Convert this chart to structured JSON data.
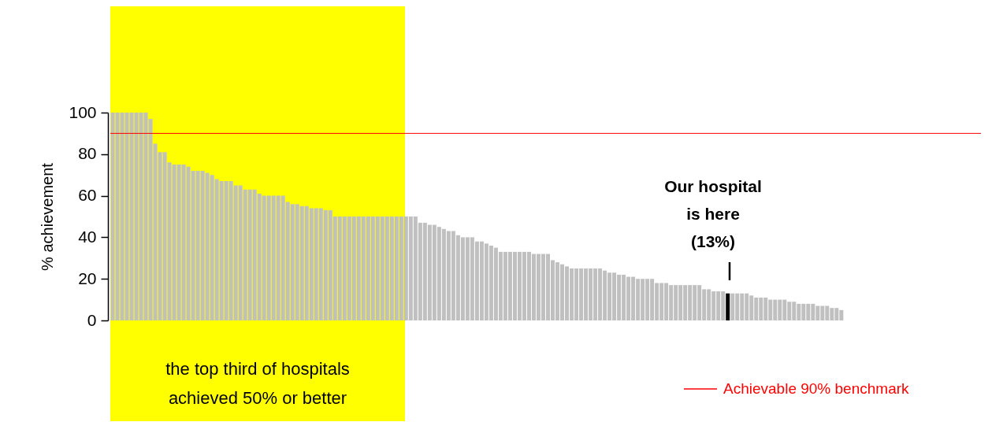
{
  "chart_data": {
    "type": "bar",
    "ylabel": "% achievement",
    "categories": [
      null,
      null,
      null,
      null,
      null,
      null,
      null,
      null,
      null,
      null,
      null,
      null,
      null,
      null,
      null,
      null,
      null,
      null,
      null,
      null,
      null,
      null,
      null,
      null,
      null,
      null,
      null,
      null,
      null,
      null,
      null,
      null,
      null,
      null,
      null,
      null,
      null,
      null,
      null,
      null,
      null,
      null,
      null,
      null,
      null,
      null,
      null,
      null,
      null,
      null,
      null,
      null,
      null,
      null,
      null,
      null,
      null,
      null,
      null,
      null,
      null,
      null,
      null,
      null,
      null,
      null,
      null,
      null,
      null,
      null,
      null,
      null,
      null,
      null,
      null,
      null,
      null,
      null,
      null,
      null,
      null,
      null,
      null,
      null,
      null,
      null,
      null,
      null,
      null,
      null,
      null,
      null,
      null,
      null,
      null,
      null,
      null,
      null,
      null,
      null,
      null,
      null,
      null,
      null,
      null,
      null,
      null,
      null,
      null,
      null,
      null,
      null,
      null,
      null,
      null,
      null,
      null,
      null,
      null,
      null,
      null,
      null,
      null,
      null,
      null,
      null,
      null,
      null,
      null,
      null,
      null,
      null,
      null,
      null,
      null,
      null,
      null,
      null,
      null,
      null,
      null,
      null,
      null,
      null,
      null,
      null,
      null,
      null,
      null,
      null,
      null,
      null,
      null,
      null,
      null,
      null,
      null,
      null,
      null,
      null,
      null,
      null,
      null,
      null,
      null,
      null,
      null,
      null,
      null,
      null,
      null,
      null,
      null,
      null,
      null,
      null,
      null,
      null,
      null,
      null,
      null,
      null,
      null,
      null
    ],
    "values": [
      100,
      100,
      100,
      100,
      100,
      100,
      100,
      100,
      97,
      85,
      81,
      81,
      76,
      75,
      75,
      75,
      74,
      72,
      72,
      72,
      71,
      70,
      68,
      67,
      67,
      67,
      65,
      65,
      63,
      63,
      63,
      61,
      60,
      60,
      60,
      60,
      60,
      57,
      56,
      56,
      55,
      55,
      54,
      54,
      54,
      53,
      53,
      50,
      50,
      50,
      50,
      50,
      50,
      50,
      50,
      50,
      50,
      50,
      50,
      50,
      50,
      50,
      50,
      50,
      50,
      47,
      47,
      46,
      46,
      45,
      44,
      43,
      43,
      41,
      40,
      40,
      40,
      38,
      38,
      37,
      36,
      35,
      33,
      33,
      33,
      33,
      33,
      33,
      33,
      32,
      32,
      32,
      32,
      29,
      28,
      27,
      26,
      25,
      25,
      25,
      25,
      25,
      25,
      25,
      24,
      23,
      23,
      22,
      22,
      21,
      21,
      20,
      20,
      20,
      20,
      18,
      18,
      18,
      17,
      17,
      17,
      17,
      17,
      17,
      17,
      15,
      15,
      14,
      14,
      14,
      13,
      13,
      13,
      13,
      13,
      12,
      11,
      11,
      11,
      10,
      10,
      10,
      10,
      9,
      9,
      8,
      8,
      8,
      8,
      7,
      7,
      7,
      6,
      6,
      5,
      0,
      0,
      0,
      0,
      0,
      0,
      0,
      0,
      0,
      0,
      0,
      0,
      0,
      0,
      0,
      0,
      0,
      0,
      0,
      0,
      0,
      0,
      0,
      0,
      0,
      0,
      0,
      0,
      0
    ],
    "colors": [
      "#c0c0c0",
      "#c0c0c0",
      "#c0c0c0",
      "#c0c0c0",
      "#c0c0c0",
      "#c0c0c0",
      "#c0c0c0",
      "#c0c0c0",
      "#c0c0c0",
      "#c0c0c0",
      "#c0c0c0",
      "#c0c0c0",
      "#c0c0c0",
      "#c0c0c0",
      "#c0c0c0",
      "#c0c0c0",
      "#c0c0c0",
      "#c0c0c0",
      "#c0c0c0",
      "#c0c0c0",
      "#c0c0c0",
      "#c0c0c0",
      "#c0c0c0",
      "#c0c0c0",
      "#c0c0c0",
      "#c0c0c0",
      "#c0c0c0",
      "#c0c0c0",
      "#c0c0c0",
      "#c0c0c0",
      "#c0c0c0",
      "#c0c0c0",
      "#c0c0c0",
      "#c0c0c0",
      "#c0c0c0",
      "#c0c0c0",
      "#c0c0c0",
      "#c0c0c0",
      "#c0c0c0",
      "#c0c0c0",
      "#c0c0c0",
      "#c0c0c0",
      "#c0c0c0",
      "#c0c0c0",
      "#c0c0c0",
      "#c0c0c0",
      "#c0c0c0",
      "#c0c0c0",
      "#c0c0c0",
      "#c0c0c0",
      "#c0c0c0",
      "#c0c0c0",
      "#c0c0c0",
      "#c0c0c0",
      "#c0c0c0",
      "#c0c0c0",
      "#c0c0c0",
      "#c0c0c0",
      "#c0c0c0",
      "#c0c0c0",
      "#c0c0c0",
      "#c0c0c0",
      "#c0c0c0",
      "#c0c0c0",
      "#c0c0c0",
      "#c0c0c0",
      "#c0c0c0",
      "#c0c0c0",
      "#c0c0c0",
      "#c0c0c0",
      "#c0c0c0",
      "#c0c0c0",
      "#c0c0c0",
      "#c0c0c0",
      "#c0c0c0",
      "#c0c0c0",
      "#c0c0c0",
      "#c0c0c0",
      "#c0c0c0",
      "#c0c0c0",
      "#c0c0c0",
      "#c0c0c0",
      "#c0c0c0",
      "#c0c0c0",
      "#c0c0c0",
      "#c0c0c0",
      "#c0c0c0",
      "#c0c0c0",
      "#c0c0c0",
      "#c0c0c0",
      "#c0c0c0",
      "#c0c0c0",
      "#c0c0c0",
      "#c0c0c0",
      "#c0c0c0",
      "#c0c0c0",
      "#c0c0c0",
      "#c0c0c0",
      "#c0c0c0",
      "#c0c0c0",
      "#c0c0c0",
      "#c0c0c0",
      "#c0c0c0",
      "#c0c0c0",
      "#c0c0c0",
      "#c0c0c0",
      "#c0c0c0",
      "#c0c0c0",
      "#c0c0c0",
      "#c0c0c0",
      "#c0c0c0",
      "#c0c0c0",
      "#c0c0c0",
      "#c0c0c0",
      "#c0c0c0",
      "#c0c0c0",
      "#c0c0c0",
      "#c0c0c0",
      "#c0c0c0",
      "#c0c0c0",
      "#c0c0c0",
      "#c0c0c0",
      "#c0c0c0",
      "#c0c0c0",
      "#c0c0c0",
      "#c0c0c0",
      "#c0c0c0",
      "#c0c0c0",
      "#c0c0c0",
      "#c0c0c0",
      "#000000",
      "#c0c0c0",
      "#c0c0c0",
      "#c0c0c0",
      "#c0c0c0",
      "#c0c0c0",
      "#c0c0c0",
      "#c0c0c0",
      "#c0c0c0",
      "#c0c0c0",
      "#c0c0c0",
      "#c0c0c0",
      "#c0c0c0",
      "#c0c0c0",
      "#c0c0c0",
      "#c0c0c0",
      "#c0c0c0",
      "#c0c0c0",
      "#c0c0c0",
      "#c0c0c0",
      "#c0c0c0",
      "#c0c0c0",
      "#c0c0c0",
      "#c0c0c0",
      "#c0c0c0",
      "#c0c0c0",
      "#c0c0c0",
      "#c0c0c0",
      "#c0c0c0",
      "#c0c0c0",
      "#c0c0c0",
      "#c0c0c0",
      "#c0c0c0",
      "#c0c0c0",
      "#c0c0c0",
      "#c0c0c0",
      "#c0c0c0",
      "#c0c0c0",
      "#c0c0c0",
      "#c0c0c0",
      "#c0c0c0",
      "#c0c0c0",
      "#c0c0c0",
      "#c0c0c0",
      "#c0c0c0",
      "#c0c0c0",
      "#c0c0c0",
      "#c0c0c0",
      "#c0c0c0",
      "#c0c0c0",
      "#c0c0c0",
      "#c0c0c0",
      "#c0c0c0",
      "#c0c0c0"
    ],
    "ylim": [
      0,
      100
    ],
    "yticks": [
      0,
      20,
      40,
      60,
      80,
      100
    ],
    "grid": false,
    "ref_lines": [
      {
        "axis": "y",
        "value": 90,
        "label": "Achievable 90% benchmark",
        "color": "#ff0000"
      }
    ],
    "annotations": [
      "the top third of hospitals\nachieved 50% or better",
      "Our hospital\nis here\n(13%)"
    ]
  }
}
